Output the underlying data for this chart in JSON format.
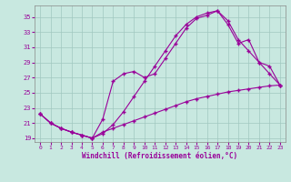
{
  "xlabel": "Windchill (Refroidissement éolien,°C)",
  "bg_color": "#c8e8e0",
  "line_color": "#990099",
  "grid_color": "#a0c8c0",
  "xlim": [
    -0.5,
    23.5
  ],
  "ylim": [
    18.5,
    36.5
  ],
  "yticks": [
    19,
    21,
    23,
    25,
    27,
    29,
    31,
    33,
    35
  ],
  "xticks": [
    0,
    1,
    2,
    3,
    4,
    5,
    6,
    7,
    8,
    9,
    10,
    11,
    12,
    13,
    14,
    15,
    16,
    17,
    18,
    19,
    20,
    21,
    22,
    23
  ],
  "line1_x": [
    0,
    1,
    2,
    3,
    4,
    5,
    6,
    7,
    8,
    9,
    10,
    11,
    12,
    13,
    14,
    15,
    16,
    17,
    18,
    19,
    20,
    21,
    22,
    23
  ],
  "line1_y": [
    22.2,
    21.0,
    20.3,
    19.8,
    19.4,
    19.0,
    19.6,
    20.8,
    22.5,
    24.5,
    26.5,
    28.5,
    30.5,
    32.5,
    34.0,
    35.0,
    35.5,
    35.8,
    34.5,
    32.0,
    30.5,
    29.0,
    28.5,
    26.0
  ],
  "line2_x": [
    0,
    1,
    2,
    3,
    4,
    5,
    6,
    7,
    8,
    9,
    10,
    11,
    12,
    13,
    14,
    15,
    16,
    17,
    18,
    19,
    20,
    21,
    22,
    23
  ],
  "line2_y": [
    22.2,
    21.0,
    20.3,
    19.8,
    19.4,
    19.0,
    21.5,
    26.5,
    27.5,
    27.8,
    27.0,
    27.5,
    29.5,
    31.5,
    33.5,
    34.8,
    35.2,
    35.8,
    34.0,
    31.5,
    32.0,
    29.0,
    27.5,
    26.0
  ],
  "line3_x": [
    0,
    1,
    2,
    3,
    4,
    5,
    6,
    7,
    8,
    9,
    10,
    11,
    12,
    13,
    14,
    15,
    16,
    17,
    18,
    19,
    20,
    21,
    22,
    23
  ],
  "line3_y": [
    22.2,
    21.0,
    20.3,
    19.8,
    19.4,
    19.0,
    19.8,
    20.3,
    20.8,
    21.3,
    21.8,
    22.3,
    22.8,
    23.3,
    23.8,
    24.2,
    24.5,
    24.8,
    25.1,
    25.3,
    25.5,
    25.7,
    25.9,
    26.0
  ]
}
